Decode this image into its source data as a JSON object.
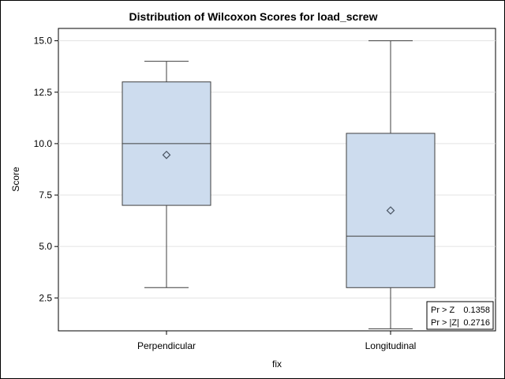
{
  "chart_data": {
    "type": "boxplot",
    "title": "Distribution of Wilcoxon Scores for load_screw",
    "xlabel": "fix",
    "ylabel": "Score",
    "ylim": [
      0.9,
      15.6
    ],
    "yticks": [
      2.5,
      5.0,
      7.5,
      10.0,
      12.5,
      15.0
    ],
    "ytick_labels": [
      "2.5",
      "5.0",
      "7.5",
      "10.0",
      "12.5",
      "15.0"
    ],
    "grid": true,
    "categories": [
      "Perpendicular",
      "Longitudinal"
    ],
    "boxes": [
      {
        "category": "Perpendicular",
        "min": 3.0,
        "q1": 7.0,
        "median": 10.0,
        "q3": 13.0,
        "max": 14.0,
        "mean": 9.45
      },
      {
        "category": "Longitudinal",
        "min": 1.0,
        "q1": 3.0,
        "median": 5.5,
        "q3": 10.5,
        "max": 15.0,
        "mean": 6.75
      }
    ],
    "stats_inset": {
      "position": "bottom-right",
      "rows": [
        {
          "label": "Pr > Z",
          "value": "0.1358"
        },
        {
          "label": "Pr > |Z|",
          "value": "0.2716"
        }
      ]
    },
    "colors": {
      "box_fill": "#cddcee",
      "box_stroke": "#3f3f3f",
      "grid": "#e3e3e3",
      "mean_marker": "#4a5563"
    }
  }
}
